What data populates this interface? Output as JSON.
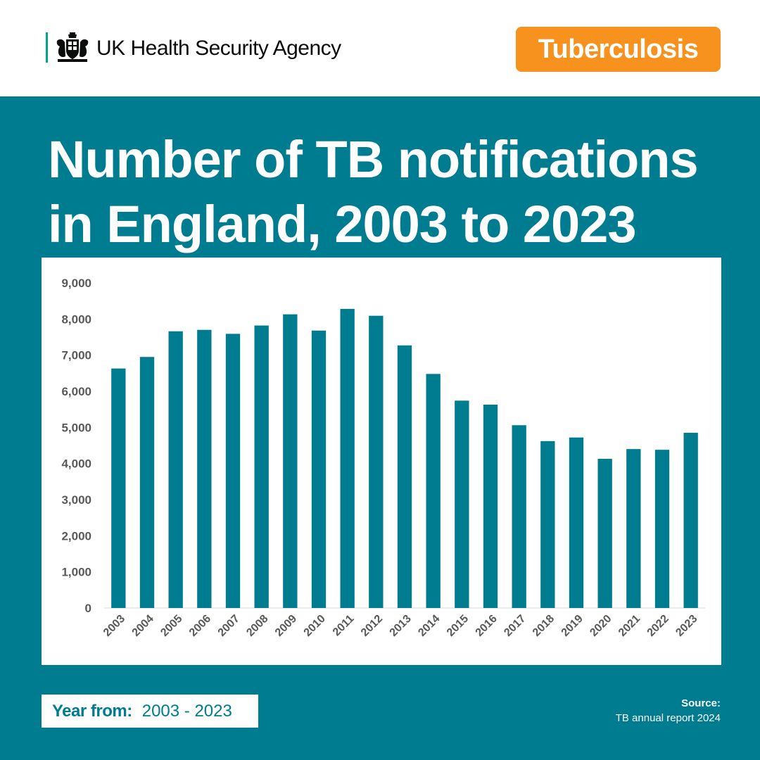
{
  "header": {
    "organisation": "UK Health Security Agency",
    "topic_badge": "Tuberculosis",
    "logo_icon": "royal-crest-icon"
  },
  "title_lines": [
    "Number of TB notifications",
    "in England, 2003 to 2023"
  ],
  "chart_data": {
    "type": "bar",
    "title": "Number of TB notifications in England, 2003 to 2023",
    "xlabel": "",
    "ylabel": "",
    "categories": [
      "2003",
      "2004",
      "2005",
      "2006",
      "2007",
      "2008",
      "2009",
      "2010",
      "2011",
      "2012",
      "2013",
      "2014",
      "2015",
      "2016",
      "2017",
      "2018",
      "2019",
      "2020",
      "2021",
      "2022",
      "2023"
    ],
    "values": [
      6630,
      6950,
      7660,
      7700,
      7590,
      7820,
      8130,
      7680,
      8280,
      8090,
      7270,
      6480,
      5740,
      5630,
      5060,
      4620,
      4720,
      4130,
      4400,
      4380,
      4850
    ],
    "ylim": [
      0,
      9000
    ],
    "yticks": [
      0,
      1000,
      2000,
      3000,
      4000,
      5000,
      6000,
      7000,
      8000,
      9000
    ],
    "ytick_labels": [
      "0",
      "1,000",
      "2,000",
      "3,000",
      "4,000",
      "5,000",
      "6,000",
      "7,000",
      "8,000",
      "9,000"
    ],
    "grid": false,
    "legend": "none",
    "bar_color": "#007c91"
  },
  "footer": {
    "year_label": "Year from:",
    "year_range": "2003 - 2023",
    "source_label": "Source:",
    "source_text": "TB annual report 2024"
  },
  "colors": {
    "brand_teal": "#007c91",
    "badge_orange": "#f7921e",
    "logo_green": "#00a58a"
  }
}
